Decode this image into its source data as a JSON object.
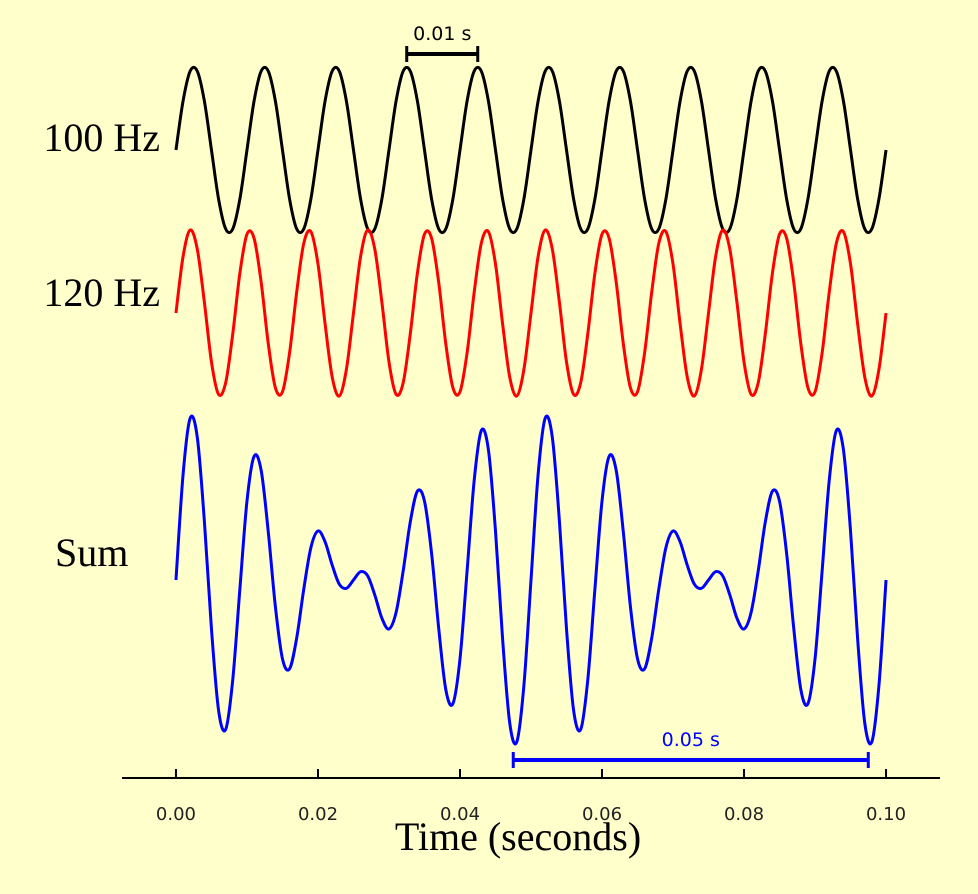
{
  "chart_data": {
    "type": "line",
    "xlabel": "Time (seconds)",
    "xlim": [
      -0.0076,
      0.1076
    ],
    "xticks": [
      {
        "value": 0,
        "label": "0.00"
      },
      {
        "value": 0.02,
        "label": "0.02"
      },
      {
        "value": 0.04,
        "label": "0.04"
      },
      {
        "value": 0.06,
        "label": "0.06"
      },
      {
        "value": 0.08,
        "label": "0.08"
      },
      {
        "value": 0.1,
        "label": "0.10"
      }
    ],
    "x": [
      0,
      0.001,
      0.002,
      0.003,
      0.004,
      0.005,
      0.006,
      0.007,
      0.008,
      0.009,
      0.01,
      0.011,
      0.012,
      0.013,
      0.014,
      0.015,
      0.016,
      0.017,
      0.018,
      0.019,
      0.02,
      0.021,
      0.022,
      0.023,
      0.024,
      0.025,
      0.026,
      0.027,
      0.028,
      0.029,
      0.03,
      0.031,
      0.032,
      0.033,
      0.034,
      0.035,
      0.036,
      0.037,
      0.038,
      0.039,
      0.04,
      0.041,
      0.042,
      0.043,
      0.044,
      0.045,
      0.046,
      0.047,
      0.048,
      0.049,
      0.05,
      0.051,
      0.052,
      0.053,
      0.054,
      0.055,
      0.056,
      0.057,
      0.058,
      0.059,
      0.06,
      0.061,
      0.062,
      0.063,
      0.064,
      0.065,
      0.066,
      0.067,
      0.068,
      0.069,
      0.07,
      0.071,
      0.072,
      0.073,
      0.074,
      0.075,
      0.076,
      0.077,
      0.078,
      0.079,
      0.08,
      0.081,
      0.082,
      0.083,
      0.084,
      0.085,
      0.086,
      0.087,
      0.088,
      0.089,
      0.09,
      0.091,
      0.092,
      0.093,
      0.094,
      0.095,
      0.096,
      0.097,
      0.098,
      0.099,
      0.1
    ],
    "series": [
      {
        "name": "100 Hz",
        "color": "#000000",
        "values": [
          0,
          0.59,
          0.95,
          0.95,
          0.59,
          0,
          -0.59,
          -0.95,
          -0.95,
          -0.59,
          0,
          0.59,
          0.95,
          0.95,
          0.59,
          0,
          -0.59,
          -0.95,
          -0.95,
          -0.59,
          0,
          0.59,
          0.95,
          0.95,
          0.59,
          0,
          -0.59,
          -0.95,
          -0.95,
          -0.59,
          0,
          0.59,
          0.95,
          0.95,
          0.59,
          0,
          -0.59,
          -0.95,
          -0.95,
          -0.59,
          0,
          0.59,
          0.95,
          0.95,
          0.59,
          0,
          -0.59,
          -0.95,
          -0.95,
          -0.59,
          0,
          0.59,
          0.95,
          0.95,
          0.59,
          0,
          -0.59,
          -0.95,
          -0.95,
          -0.59,
          0,
          0.59,
          0.95,
          0.95,
          0.59,
          0,
          -0.59,
          -0.95,
          -0.95,
          -0.59,
          0,
          0.59,
          0.95,
          0.95,
          0.59,
          0,
          -0.59,
          -0.95,
          -0.95,
          -0.59,
          0,
          0.59,
          0.95,
          0.95,
          0.59,
          0,
          -0.59,
          -0.95,
          -0.95,
          -0.59,
          0,
          0.59,
          0.95,
          0.95,
          0.59,
          0,
          -0.59,
          -0.95,
          -0.95,
          -0.59,
          0
        ]
      },
      {
        "name": "120 Hz",
        "color": "#ff0000",
        "values": [
          0,
          0.68,
          1.0,
          0.77,
          0.13,
          -0.59,
          -0.98,
          -0.84,
          -0.25,
          0.48,
          0.95,
          0.9,
          0.37,
          -0.37,
          -0.9,
          -0.95,
          -0.48,
          0.25,
          0.84,
          0.98,
          0.59,
          -0.13,
          -0.77,
          -1.0,
          -0.68,
          0,
          0.68,
          1.0,
          0.77,
          0.13,
          -0.59,
          -0.98,
          -0.84,
          -0.25,
          0.48,
          0.95,
          0.9,
          0.37,
          -0.37,
          -0.9,
          -0.95,
          -0.48,
          0.25,
          0.84,
          0.98,
          0.59,
          -0.13,
          -0.77,
          -1.0,
          -0.68,
          0,
          0.68,
          1.0,
          0.77,
          0.13,
          -0.59,
          -0.98,
          -0.84,
          -0.25,
          0.48,
          0.95,
          0.9,
          0.37,
          -0.37,
          -0.9,
          -0.95,
          -0.48,
          0.25,
          0.84,
          0.98,
          0.59,
          -0.13,
          -0.77,
          -1.0,
          -0.68,
          0,
          0.68,
          1.0,
          0.77,
          0.13,
          -0.59,
          -0.98,
          -0.84,
          -0.25,
          0.48,
          0.95,
          0.9,
          0.37,
          -0.37,
          -0.9,
          -0.95,
          -0.48,
          0.25,
          0.84,
          0.98,
          0.59,
          -0.13,
          -0.77,
          -1.0,
          -0.68,
          0
        ]
      },
      {
        "name": "Sum",
        "color": "#0000ff",
        "values": [
          0,
          1.27,
          1.95,
          1.72,
          0.71,
          -0.59,
          -1.57,
          -1.8,
          -1.2,
          -0.11,
          0.95,
          1.49,
          1.32,
          0.58,
          -0.32,
          -0.95,
          -1.07,
          -0.7,
          -0.11,
          0.39,
          0.59,
          0.46,
          0.18,
          -0.05,
          -0.1,
          0,
          0.1,
          0.05,
          -0.18,
          -0.46,
          -0.59,
          -0.39,
          0.11,
          0.7,
          1.07,
          0.95,
          0.32,
          -0.58,
          -1.32,
          -1.49,
          -0.95,
          0.11,
          1.2,
          1.8,
          1.57,
          0.59,
          -0.71,
          -1.72,
          -1.95,
          -1.27,
          0,
          1.27,
          1.95,
          1.72,
          0.71,
          -0.59,
          -1.57,
          -1.8,
          -1.2,
          -0.11,
          0.95,
          1.49,
          1.32,
          0.58,
          -0.32,
          -0.95,
          -1.07,
          -0.7,
          -0.11,
          0.39,
          0.59,
          0.46,
          0.18,
          -0.05,
          -0.1,
          0,
          0.1,
          0.05,
          -0.18,
          -0.46,
          -0.59,
          -0.39,
          0.11,
          0.7,
          1.07,
          0.95,
          0.32,
          -0.58,
          -1.32,
          -1.49,
          -0.95,
          0.11,
          1.2,
          1.8,
          1.57,
          0.59,
          -0.71,
          -1.72,
          -1.95,
          -1.27,
          0
        ]
      }
    ],
    "annotations": [
      {
        "text": "0.01 s",
        "x": [
          0.0325,
          0.0425
        ],
        "color": "#000000"
      },
      {
        "text": "0.05 s",
        "x": [
          0.0475,
          0.0975
        ],
        "color": "#0000ff"
      }
    ]
  }
}
